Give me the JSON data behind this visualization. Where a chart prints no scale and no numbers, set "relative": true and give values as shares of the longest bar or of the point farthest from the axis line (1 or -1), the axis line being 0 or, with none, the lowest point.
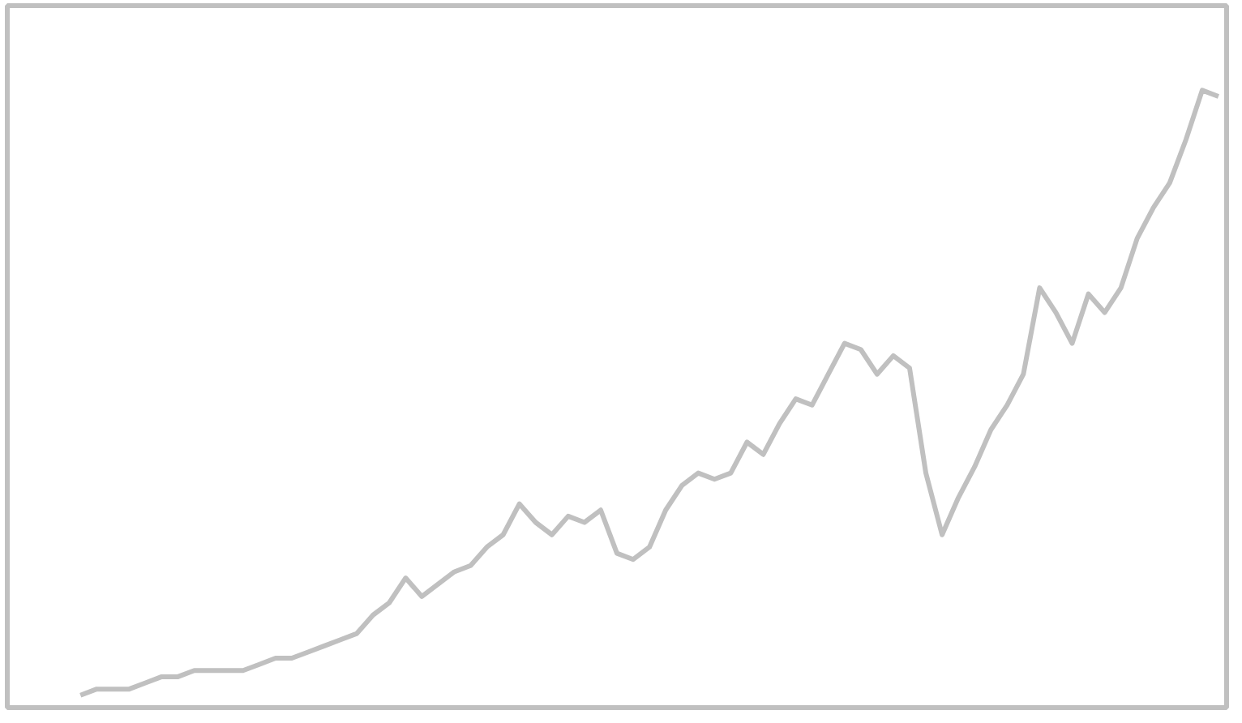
{
  "chart_data": {
    "type": "line",
    "relative": true,
    "categories": [
      null,
      null,
      null,
      null,
      null,
      null,
      null,
      null,
      null,
      null,
      null,
      null,
      null,
      null,
      null,
      null,
      null,
      null,
      null,
      null,
      null,
      null,
      null,
      null,
      null,
      null,
      null,
      null,
      null,
      null,
      null,
      null,
      null,
      null,
      null,
      null,
      null,
      null,
      null,
      null,
      null,
      null,
      null,
      null,
      null,
      null,
      null,
      null,
      null,
      null,
      null,
      null,
      null,
      null,
      null,
      null,
      null,
      null,
      null,
      null,
      null,
      null,
      null,
      null,
      null,
      null,
      null,
      null,
      null,
      null,
      null
    ],
    "series": [
      {
        "color": "#c0c0c0",
        "values": [
          0.02,
          0.03,
          0.03,
          0.03,
          0.04,
          0.05,
          0.05,
          0.06,
          0.06,
          0.06,
          0.06,
          0.07,
          0.08,
          0.08,
          0.09,
          0.1,
          0.11,
          0.12,
          0.15,
          0.17,
          0.21,
          0.18,
          0.2,
          0.22,
          0.23,
          0.26,
          0.28,
          0.33,
          0.3,
          0.28,
          0.31,
          0.3,
          0.32,
          0.25,
          0.24,
          0.26,
          0.32,
          0.36,
          0.38,
          0.37,
          0.38,
          0.43,
          0.41,
          0.46,
          0.5,
          0.49,
          0.54,
          0.59,
          0.58,
          0.54,
          0.57,
          0.55,
          0.38,
          0.28,
          0.34,
          0.39,
          0.45,
          0.49,
          0.54,
          0.68,
          0.64,
          0.59,
          0.67,
          0.64,
          0.68,
          0.76,
          0.81,
          0.85,
          0.92,
          1,
          0.99
        ]
      }
    ],
    "grid": false
  }
}
